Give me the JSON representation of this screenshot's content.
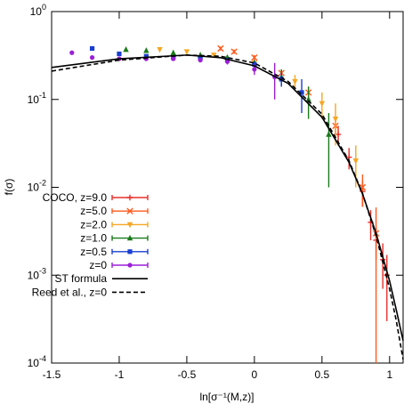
{
  "chart_data": {
    "type": "scatter",
    "x_label": "ln[σ⁻¹(M,z)]",
    "y_label": "f(σ)",
    "xlim": [
      -1.5,
      1.1
    ],
    "xticks": [
      -1.5,
      -1,
      -0.5,
      0,
      0.5,
      1
    ],
    "ylim": [
      0.0001,
      1
    ],
    "yticks": [
      {
        "value": 0.0001,
        "label": "10^-4"
      },
      {
        "value": 0.001,
        "label": "10^-3"
      },
      {
        "value": 0.01,
        "label": "10^-2"
      },
      {
        "value": 0.1,
        "label": "10^-1"
      },
      {
        "value": 1,
        "label": "10^0"
      }
    ],
    "log_y": true,
    "legend": "lower left",
    "series": [
      {
        "name": "COCO, z=9.0",
        "color": "#e8302a",
        "marker": "plus",
        "x": [
          0.62,
          0.7,
          0.8,
          0.86,
          0.9,
          0.95,
          0.98
        ],
        "values": [
          0.04,
          0.022,
          0.009,
          0.004,
          0.0025,
          0.0015,
          0.001
        ],
        "errors": [
          0.01,
          0.006,
          0.003,
          0.0015,
          0.001,
          0.0008,
          0.0007
        ]
      },
      {
        "name": "z=5.0",
        "color": "#ff5a1e",
        "marker": "x",
        "x": [
          -0.25,
          -0.15,
          0,
          0.2,
          0.4,
          0.6,
          0.8,
          0.9
        ],
        "values": [
          0.38,
          0.35,
          0.3,
          0.2,
          0.12,
          0.05,
          0.01,
          0.003
        ],
        "errors": [
          0.02,
          0.02,
          0.02,
          0.02,
          0.02,
          0.01,
          0.004,
          0.0029
        ]
      },
      {
        "name": "z=2.0",
        "color": "#f5a623",
        "marker": "tri-down",
        "x": [
          -0.7,
          -0.5,
          -0.3,
          0,
          0.3,
          0.5,
          0.6,
          0.75
        ],
        "values": [
          0.37,
          0.35,
          0.32,
          0.26,
          0.16,
          0.09,
          0.06,
          0.02
        ],
        "errors": [
          0.01,
          0.01,
          0.01,
          0.02,
          0.03,
          0.03,
          0.03,
          0.01
        ]
      },
      {
        "name": "z=1.0",
        "color": "#1a7a1a",
        "marker": "tri-up",
        "x": [
          -0.95,
          -0.8,
          -0.6,
          -0.4,
          -0.2,
          0,
          0.2,
          0.4,
          0.55
        ],
        "values": [
          0.37,
          0.36,
          0.34,
          0.32,
          0.3,
          0.26,
          0.18,
          0.1,
          0.04
        ],
        "errors": [
          0.01,
          0.01,
          0.01,
          0.01,
          0.02,
          0.02,
          0.04,
          0.04,
          0.03
        ]
      },
      {
        "name": "z=0.5",
        "color": "#1a3fd0",
        "marker": "square",
        "x": [
          -1.2,
          -1,
          -0.8,
          -0.6,
          -0.4,
          -0.2,
          0,
          0.2,
          0.35
        ],
        "values": [
          0.38,
          0.33,
          0.31,
          0.3,
          0.3,
          0.28,
          0.25,
          0.17,
          0.12
        ],
        "errors": [
          0.01,
          0.01,
          0.01,
          0.01,
          0.01,
          0.01,
          0.02,
          0.03,
          0.05
        ]
      },
      {
        "name": "z=0",
        "color": "#9b1fd6",
        "marker": "circle",
        "x": [
          -1.35,
          -1.2,
          -1,
          -0.8,
          -0.6,
          -0.4,
          -0.2,
          0,
          0.15
        ],
        "values": [
          0.34,
          0.3,
          0.29,
          0.29,
          0.29,
          0.28,
          0.27,
          0.22,
          0.18
        ],
        "errors": [
          0.01,
          0.01,
          0.01,
          0.01,
          0.01,
          0.01,
          0.02,
          0.03,
          0.08
        ]
      },
      {
        "name": "ST formula",
        "color": "#000000",
        "line": "solid",
        "x": [
          -1.5,
          -1,
          -0.5,
          -0.25,
          0,
          0.25,
          0.5,
          0.7,
          0.8,
          0.9,
          1,
          1.05,
          1.1
        ],
        "values": [
          0.231,
          0.29,
          0.32,
          0.299,
          0.241,
          0.152,
          0.0627,
          0.0192,
          0.0084,
          0.003,
          0.00086,
          0.0004,
          0.00018
        ]
      },
      {
        "name": "Reed et al., z=0",
        "color": "#000000",
        "line": "dashed",
        "x": [
          -1.5,
          -1,
          -0.5,
          -0.25,
          0,
          0.25,
          0.5,
          0.7,
          0.8,
          0.9,
          1,
          1.05,
          1.1
        ],
        "values": [
          0.21,
          0.28,
          0.32,
          0.31,
          0.26,
          0.16,
          0.068,
          0.02,
          0.0085,
          0.0028,
          0.0007,
          0.0003,
          0.00011
        ]
      }
    ]
  }
}
